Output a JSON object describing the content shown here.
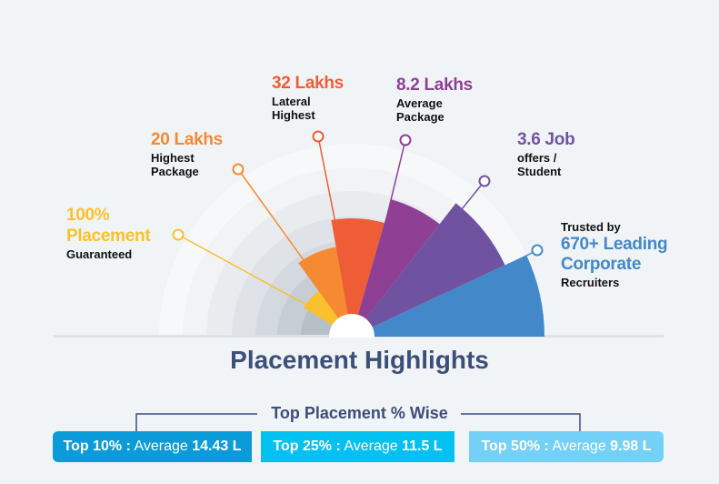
{
  "title": "Placement Highlights",
  "subtitle": "Top Placement % Wise",
  "highlights": [
    {
      "value": "100%",
      "value2": "Placement",
      "label": "Guaranteed",
      "color": "#fbc02d"
    },
    {
      "value": "20 Lakhs",
      "label1": "Highest",
      "label2": "Package",
      "color": "#f58a33"
    },
    {
      "value": "32 Lakhs",
      "label1": "Lateral",
      "label2": "Highest",
      "color": "#ef5d36"
    },
    {
      "value": "8.2 Lakhs",
      "label1": "Average",
      "label2": "Package",
      "color": "#8f3f94"
    },
    {
      "value": "3.6 Job",
      "label1": "offers /",
      "label2": "Student",
      "color": "#7053a0"
    },
    {
      "pre": "Trusted by",
      "value": "670+ Leading",
      "value2": "Corporate",
      "label": "Recruiters",
      "color": "#4388c8"
    }
  ],
  "tiers": [
    {
      "bold": "Top 10% :",
      "text": " Average ",
      "value": "14.43 L",
      "color": "#0b9bd9"
    },
    {
      "bold": "Top 25% :",
      "text": " Average ",
      "value": "11.5 L",
      "color": "#02c0f0"
    },
    {
      "bold": "Top 50% :",
      "text": " Average ",
      "value": "9.98 L",
      "color": "#74d0f6"
    }
  ]
}
